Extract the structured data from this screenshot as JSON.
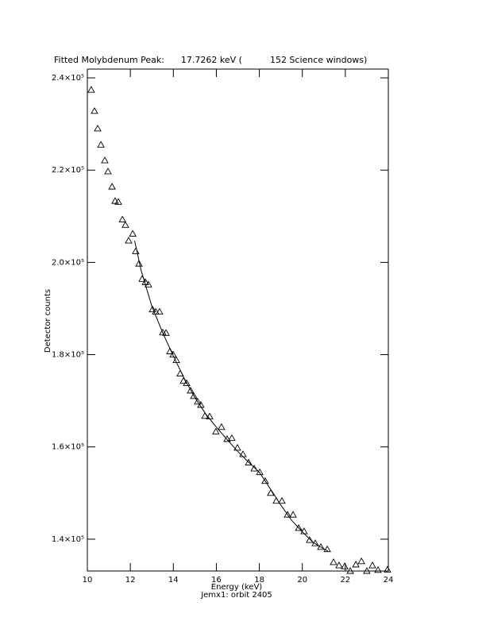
{
  "chart_data": {
    "type": "scatter",
    "title": "Fitted Molybdenum Peak:      17.7262 keV (          152 Science windows)",
    "xlabel": "Energy (keV)",
    "ylabel": "Detector counts",
    "subtitle": "Jemx1: orbit 2405",
    "xlim": [
      10,
      24
    ],
    "xticks": [
      10,
      12,
      14,
      16,
      18,
      20,
      22,
      24
    ],
    "ylim": [
      133100,
      241900
    ],
    "yticks": [
      {
        "value": 140000,
        "label": "1.4×10⁵"
      },
      {
        "value": 160000,
        "label": "1.6×10⁵"
      },
      {
        "value": 180000,
        "label": "1.8×10⁵"
      },
      {
        "value": 200000,
        "label": "2.0×10⁵"
      },
      {
        "value": 220000,
        "label": "2.2×10⁵"
      },
      {
        "value": 240000,
        "label": "2.4×10⁵"
      }
    ],
    "series": [
      {
        "color": "#000000",
        "marker": "triangle",
        "x": [
          10.18,
          10.33,
          10.48,
          10.63,
          10.81,
          10.96,
          11.15,
          11.29,
          11.44,
          11.63,
          11.77,
          11.92,
          12.11,
          12.25,
          12.4,
          12.55,
          12.7,
          12.84,
          13.03,
          13.18,
          13.36,
          13.51,
          13.66,
          13.84,
          13.99,
          14.14,
          14.32,
          14.47,
          14.62,
          14.8,
          14.95,
          15.13,
          15.28,
          15.47,
          15.69,
          15.98,
          16.24,
          16.5,
          16.72,
          16.98,
          17.24,
          17.5,
          17.76,
          18.02,
          18.27,
          18.53,
          18.79,
          19.05,
          19.31,
          19.57,
          19.83,
          20.08,
          20.34,
          20.6,
          20.86,
          21.16,
          21.45,
          21.71,
          21.97,
          22.23,
          22.49,
          22.75,
          23.0,
          23.26,
          23.52,
          23.96
        ],
        "values": [
          237400,
          232800,
          229000,
          225500,
          222100,
          219700,
          216400,
          213300,
          213100,
          209300,
          208100,
          204700,
          206200,
          202400,
          199700,
          196400,
          195700,
          195200,
          189800,
          189300,
          189300,
          184800,
          184700,
          180700,
          180000,
          178800,
          175900,
          174300,
          173800,
          172200,
          171000,
          169800,
          169100,
          166700,
          166600,
          163300,
          164300,
          161700,
          161900,
          159800,
          158400,
          156600,
          155300,
          154500,
          152600,
          150000,
          148300,
          148300,
          145300,
          145300,
          142400,
          141700,
          139800,
          139100,
          138300,
          137800,
          135000,
          134300,
          134100,
          133100,
          134500,
          135200,
          133100,
          134300,
          133300,
          133400
        ]
      },
      {
        "color": "#000000",
        "marker": "line",
        "x": [
          12.2,
          12.5,
          13,
          13.5,
          14,
          14.5,
          15,
          15.5,
          16,
          16.5,
          17,
          17.5,
          18,
          18.5,
          19,
          19.5,
          20,
          20.5,
          21,
          21.2
        ],
        "values": [
          204700,
          198300,
          190500,
          184800,
          179700,
          174900,
          170700,
          167200,
          164300,
          161600,
          159000,
          156700,
          154500,
          151000,
          147400,
          144100,
          141600,
          139300,
          137900,
          137400
        ]
      }
    ]
  }
}
